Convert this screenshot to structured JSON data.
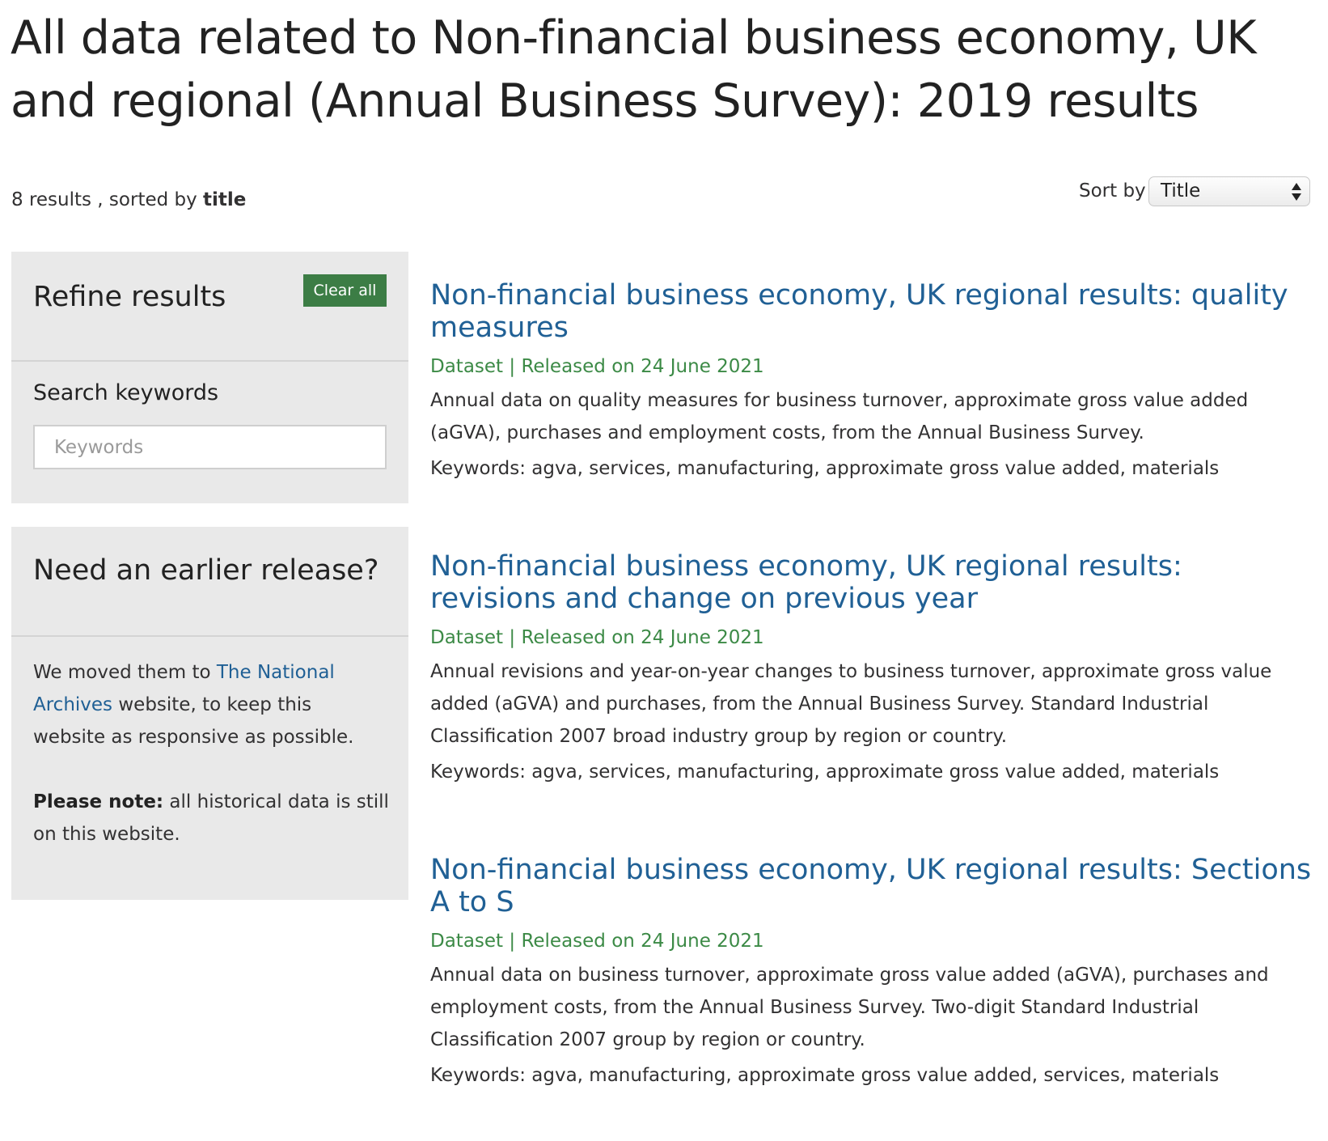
{
  "page": {
    "title": "All data related to Non-financial business economy, UK and regional (Annual Business Survey): 2019 results"
  },
  "summary": {
    "count_text": "8 results , sorted by ",
    "sorted_field": "title"
  },
  "sort": {
    "label": "Sort by",
    "selected": "Title"
  },
  "refine": {
    "heading": "Refine results",
    "clear_all_label": "Clear all",
    "search_label": "Search keywords",
    "search_placeholder": "Keywords",
    "search_value": ""
  },
  "earlier": {
    "heading": "Need an earlier release?",
    "text_before": "We moved them to ",
    "link_text": "The National Archives",
    "text_after": " website, to keep this website as responsive as possible.",
    "note_label": "Please note:",
    "note_text": " all historical data is still on this website."
  },
  "results": [
    {
      "title": "Non-financial business economy, UK regional results: quality measures",
      "meta": "Dataset | Released on 24 June 2021",
      "description": "Annual data on quality measures for business turnover, approximate gross value added (aGVA), purchases and employment costs, from the Annual Business Survey.",
      "keywords": "Keywords: agva, services, manufacturing, approximate gross value added, materials"
    },
    {
      "title": "Non-financial business economy, UK regional results: revisions and change on previous year",
      "meta": "Dataset | Released on 24 June 2021",
      "description": "Annual revisions and year-on-year changes to business turnover, approximate gross value added (aGVA) and purchases, from the Annual Business Survey. Standard Industrial Classification 2007 broad industry group by region or country.",
      "keywords": "Keywords: agva, services, manufacturing, approximate gross value added, materials"
    },
    {
      "title": "Non-financial business economy, UK regional results: Sections A to S",
      "meta": "Dataset | Released on 24 June 2021",
      "description": "Annual data on business turnover, approximate gross value added (aGVA), purchases and employment costs, from the Annual Business Survey. Two-digit Standard Industrial Classification 2007 group by region or country.",
      "keywords": "Keywords: agva, manufacturing, approximate gross value added, services, materials"
    }
  ]
}
